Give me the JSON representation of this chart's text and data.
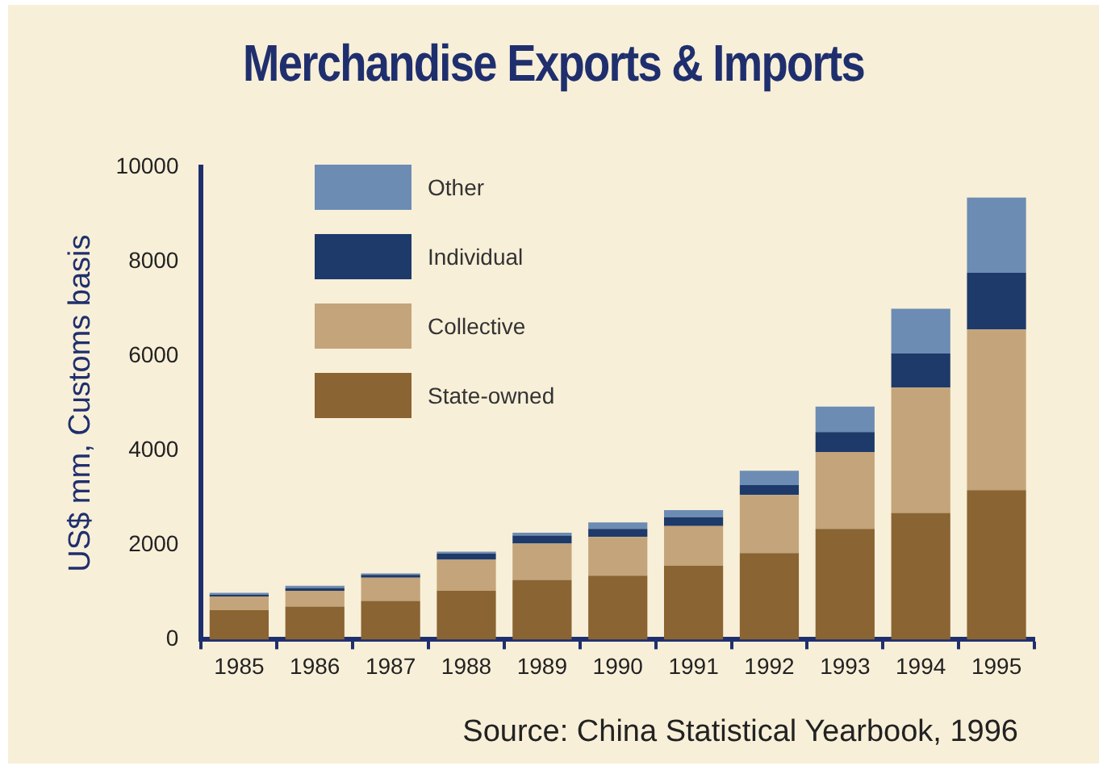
{
  "chart_data": {
    "type": "bar",
    "title": "Merchandise Exports & Imports",
    "ylabel": "US$ mm, Customs basis",
    "categories": [
      "1985",
      "1986",
      "1987",
      "1988",
      "1989",
      "1990",
      "1991",
      "1992",
      "1993",
      "1994",
      "1995"
    ],
    "stacked": true,
    "ylim": [
      0,
      10000
    ],
    "yticks": [
      0,
      2000,
      4000,
      6000,
      8000,
      10000
    ],
    "grid": false,
    "legend": "top left",
    "series": [
      {
        "name": "State-owned",
        "color": "#8a6432",
        "values": [
          620,
          700,
          820,
          1030,
          1260,
          1350,
          1560,
          1830,
          2340,
          2680,
          3160
        ]
      },
      {
        "name": "Collective",
        "color": "#c4a47a",
        "values": [
          290,
          330,
          490,
          660,
          770,
          820,
          840,
          1230,
          1630,
          2650,
          3400
        ]
      },
      {
        "name": "Individual",
        "color": "#1e3a6a",
        "values": [
          40,
          60,
          60,
          130,
          170,
          170,
          190,
          210,
          420,
          720,
          1200
        ]
      },
      {
        "name": "Other",
        "color": "#6c8cb4",
        "values": [
          40,
          50,
          30,
          40,
          60,
          140,
          150,
          300,
          540,
          950,
          1590
        ]
      }
    ],
    "annotations": [
      "Source: China Statistical Yearbook, 1996"
    ]
  }
}
